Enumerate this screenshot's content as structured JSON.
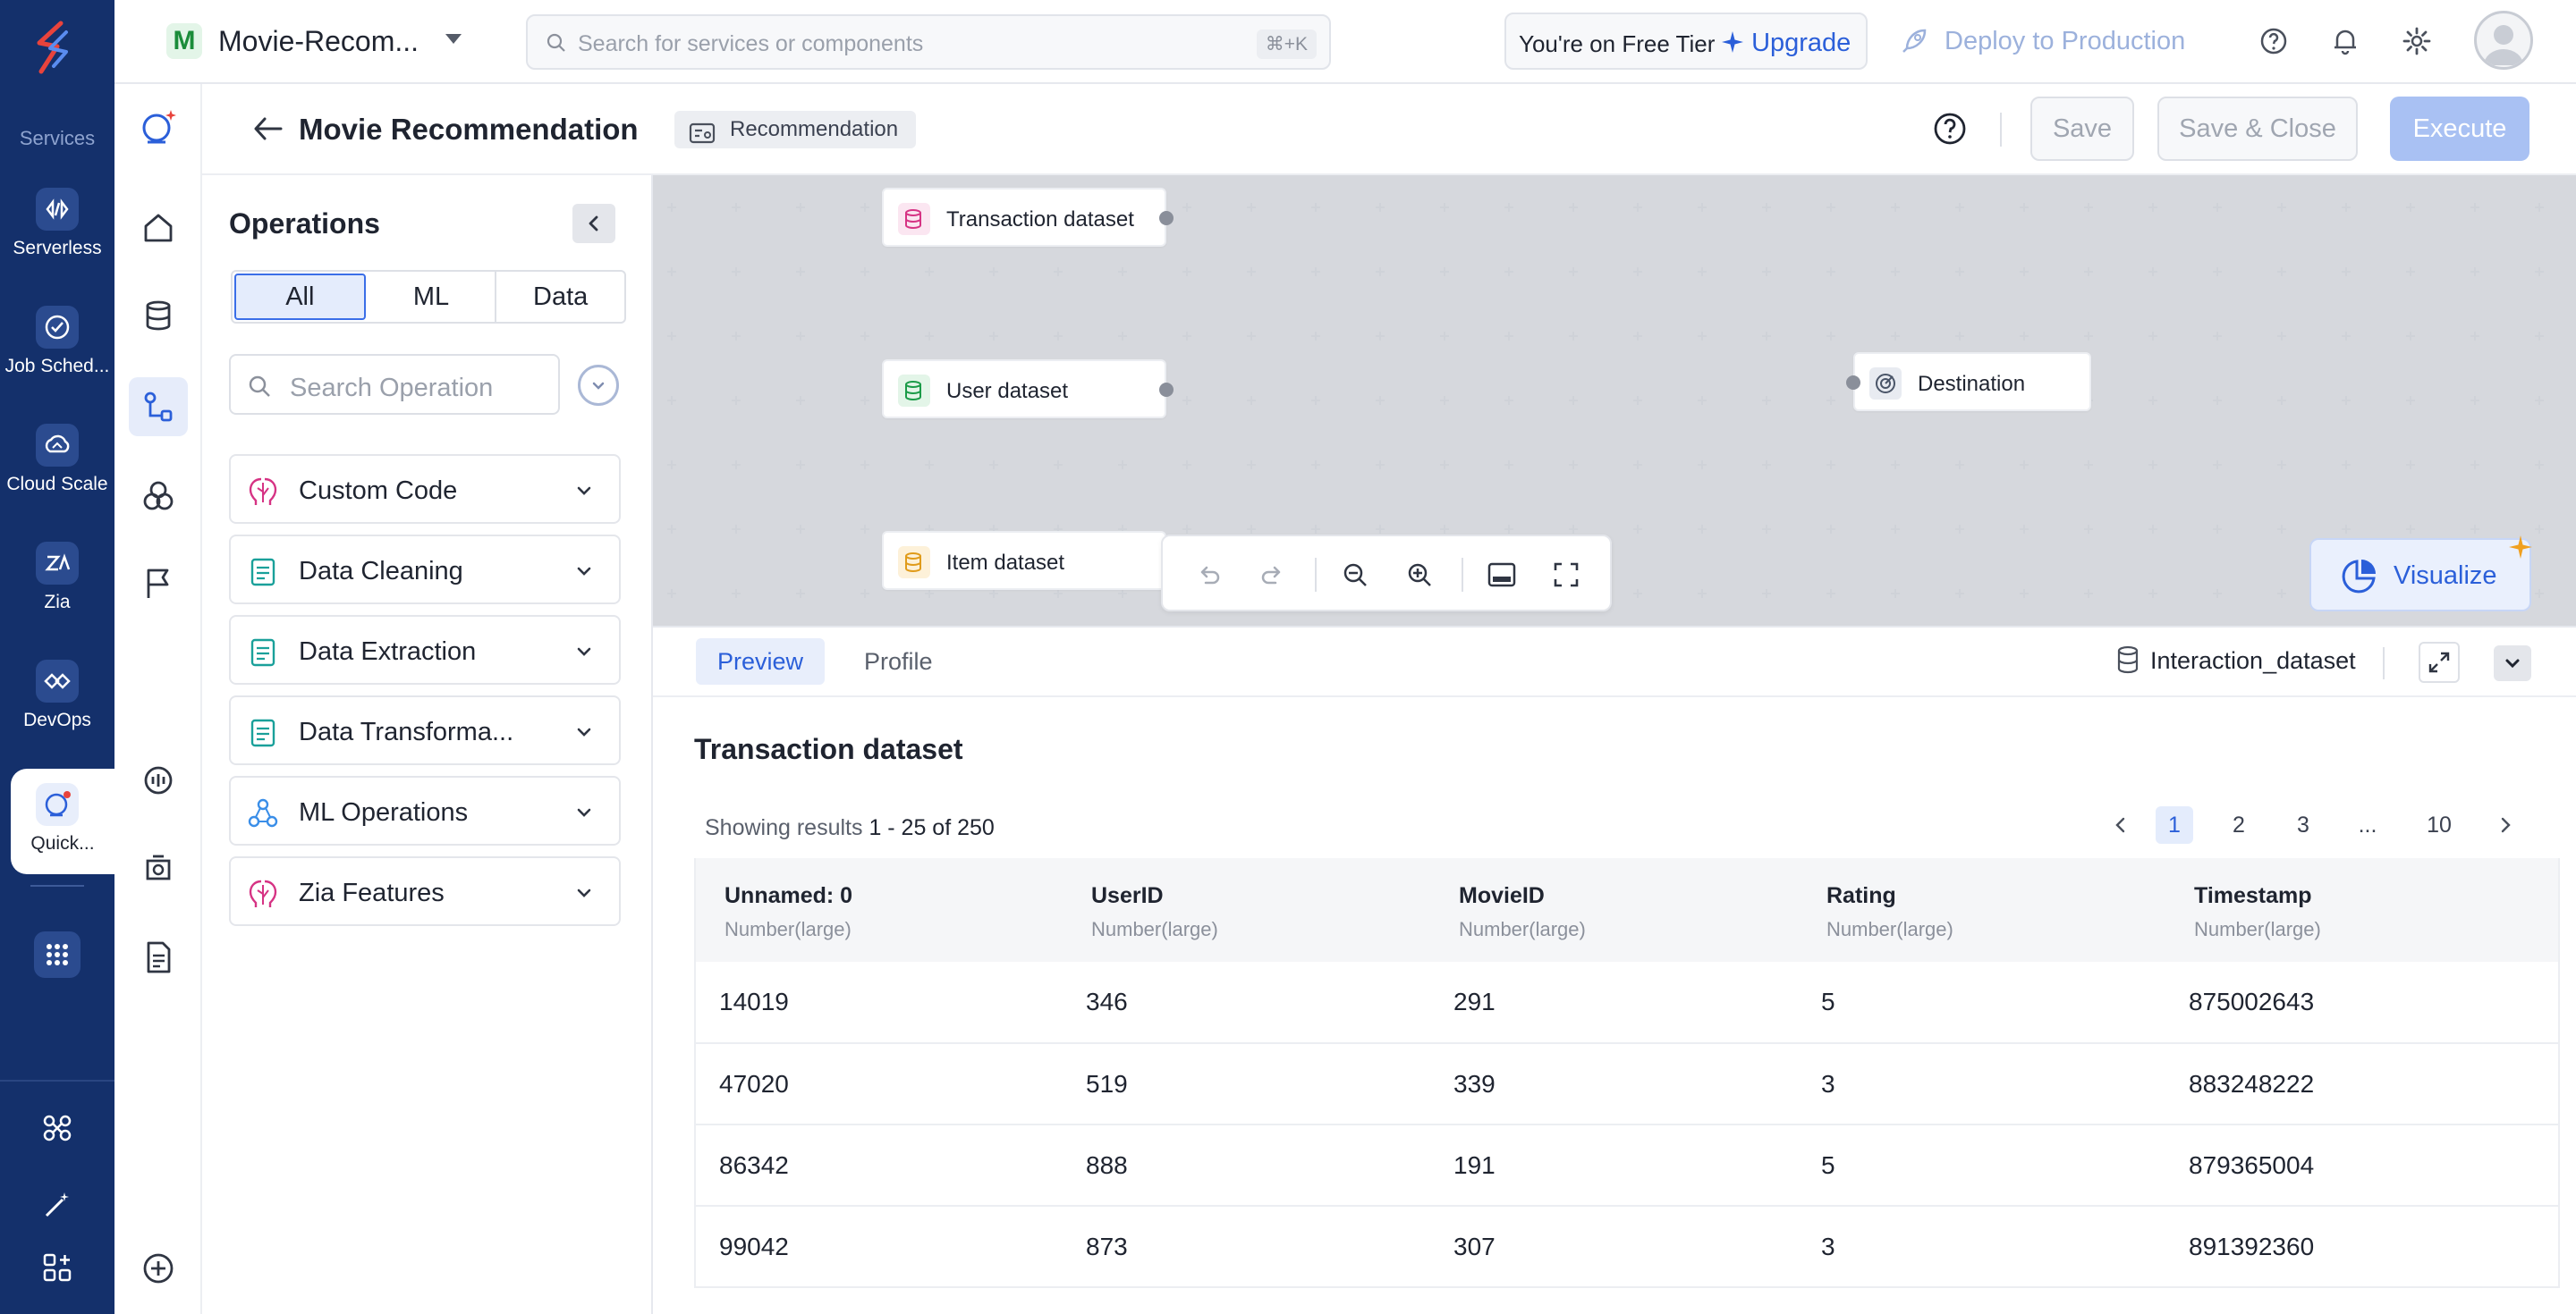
{
  "rail": {
    "services_label": "Services",
    "items": [
      {
        "label": "Serverless",
        "icon": "serverless-icon"
      },
      {
        "label": "Job Sched...",
        "icon": "job-scheduler-icon"
      },
      {
        "label": "Cloud Scale",
        "icon": "cloud-scale-icon"
      },
      {
        "label": "Zia",
        "icon": "zia-icon"
      },
      {
        "label": "DevOps",
        "icon": "devops-icon"
      },
      {
        "label": "Quick...",
        "icon": "quickml-icon"
      }
    ]
  },
  "header": {
    "project_initial": "M",
    "project_name": "Movie-Recom...",
    "search_placeholder": "Search for services or components",
    "search_shortcut": "⌘+K",
    "tier_text": "You're on Free Tier",
    "upgrade_label": "Upgrade",
    "deploy_label": "Deploy to Production"
  },
  "pipeline": {
    "title": "Movie Recommendation",
    "tag": "Recommendation",
    "save_label": "Save",
    "save_close_label": "Save & Close",
    "execute_label": "Execute"
  },
  "operations": {
    "title": "Operations",
    "filters": [
      "All",
      "ML",
      "Data"
    ],
    "active_filter": "All",
    "search_placeholder": "Search Operation",
    "categories": [
      {
        "label": "Custom Code",
        "icon": "custom-code-icon"
      },
      {
        "label": "Data Cleaning",
        "icon": "data-cleaning-icon"
      },
      {
        "label": "Data Extraction",
        "icon": "data-extraction-icon"
      },
      {
        "label": "Data Transforma...",
        "icon": "data-transformation-icon"
      },
      {
        "label": "ML Operations",
        "icon": "ml-operations-icon"
      },
      {
        "label": "Zia Features",
        "icon": "zia-features-icon"
      }
    ]
  },
  "canvas": {
    "nodes": [
      {
        "label": "Transaction dataset",
        "color": "#d63384"
      },
      {
        "label": "User dataset",
        "color": "#1b9b48"
      },
      {
        "label": "Item dataset",
        "color": "#e09b1a"
      },
      {
        "label": "Destination",
        "color": "#4a5568"
      }
    ],
    "visualize_label": "Visualize"
  },
  "preview": {
    "tabs": [
      "Preview",
      "Profile"
    ],
    "active_tab": "Preview",
    "dataset_selector": "Interaction_dataset",
    "dataset_title": "Transaction dataset",
    "results_prefix": "Showing results",
    "results_range": "1 - 25 of 250",
    "pages": [
      "1",
      "2",
      "3",
      "...",
      "10"
    ],
    "active_page": "1",
    "columns": [
      {
        "name": "Unnamed: 0",
        "type": "Number(large)"
      },
      {
        "name": "UserID",
        "type": "Number(large)"
      },
      {
        "name": "MovieID",
        "type": "Number(large)"
      },
      {
        "name": "Rating",
        "type": "Number(large)"
      },
      {
        "name": "Timestamp",
        "type": "Number(large)"
      }
    ],
    "rows": [
      [
        "14019",
        "346",
        "291",
        "5",
        "875002643"
      ],
      [
        "47020",
        "519",
        "339",
        "3",
        "883248222"
      ],
      [
        "86342",
        "888",
        "191",
        "5",
        "879365004"
      ],
      [
        "99042",
        "873",
        "307",
        "3",
        "891392360"
      ]
    ]
  },
  "colors": {
    "rail_bg": "#14306b",
    "accent": "#2b5fd9",
    "execute_bg": "#a9c1f3"
  }
}
